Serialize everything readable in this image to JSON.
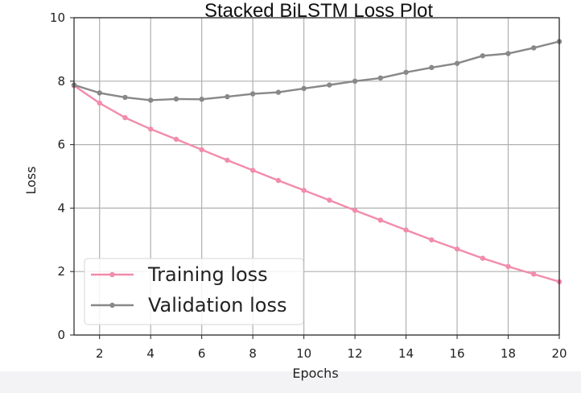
{
  "chart_data": {
    "type": "line",
    "title": "Stacked BiLSTM Loss Plot",
    "xlabel": "Epochs",
    "ylabel": "Loss",
    "xlim": [
      1,
      20
    ],
    "ylim": [
      0,
      10
    ],
    "x_ticks": [
      2,
      4,
      6,
      8,
      10,
      12,
      14,
      16,
      18,
      20
    ],
    "y_ticks": [
      0,
      2,
      4,
      6,
      8,
      10
    ],
    "grid": true,
    "legend_position": "lower-left",
    "x": [
      1,
      2,
      3,
      4,
      5,
      6,
      7,
      8,
      9,
      10,
      11,
      12,
      13,
      14,
      15,
      16,
      17,
      18,
      19,
      20
    ],
    "series": [
      {
        "name": "Training loss",
        "color": "#f28cab",
        "values": [
          7.86,
          7.31,
          6.85,
          6.49,
          6.17,
          5.84,
          5.51,
          5.19,
          4.87,
          4.56,
          4.25,
          3.93,
          3.62,
          3.31,
          3.0,
          2.71,
          2.42,
          2.16,
          1.92,
          1.68
        ]
      },
      {
        "name": "Validation loss",
        "color": "#888888",
        "values": [
          7.88,
          7.63,
          7.49,
          7.4,
          7.44,
          7.43,
          7.51,
          7.6,
          7.65,
          7.77,
          7.88,
          8.0,
          8.1,
          8.28,
          8.43,
          8.56,
          8.8,
          8.87,
          9.05,
          9.25
        ]
      }
    ]
  }
}
